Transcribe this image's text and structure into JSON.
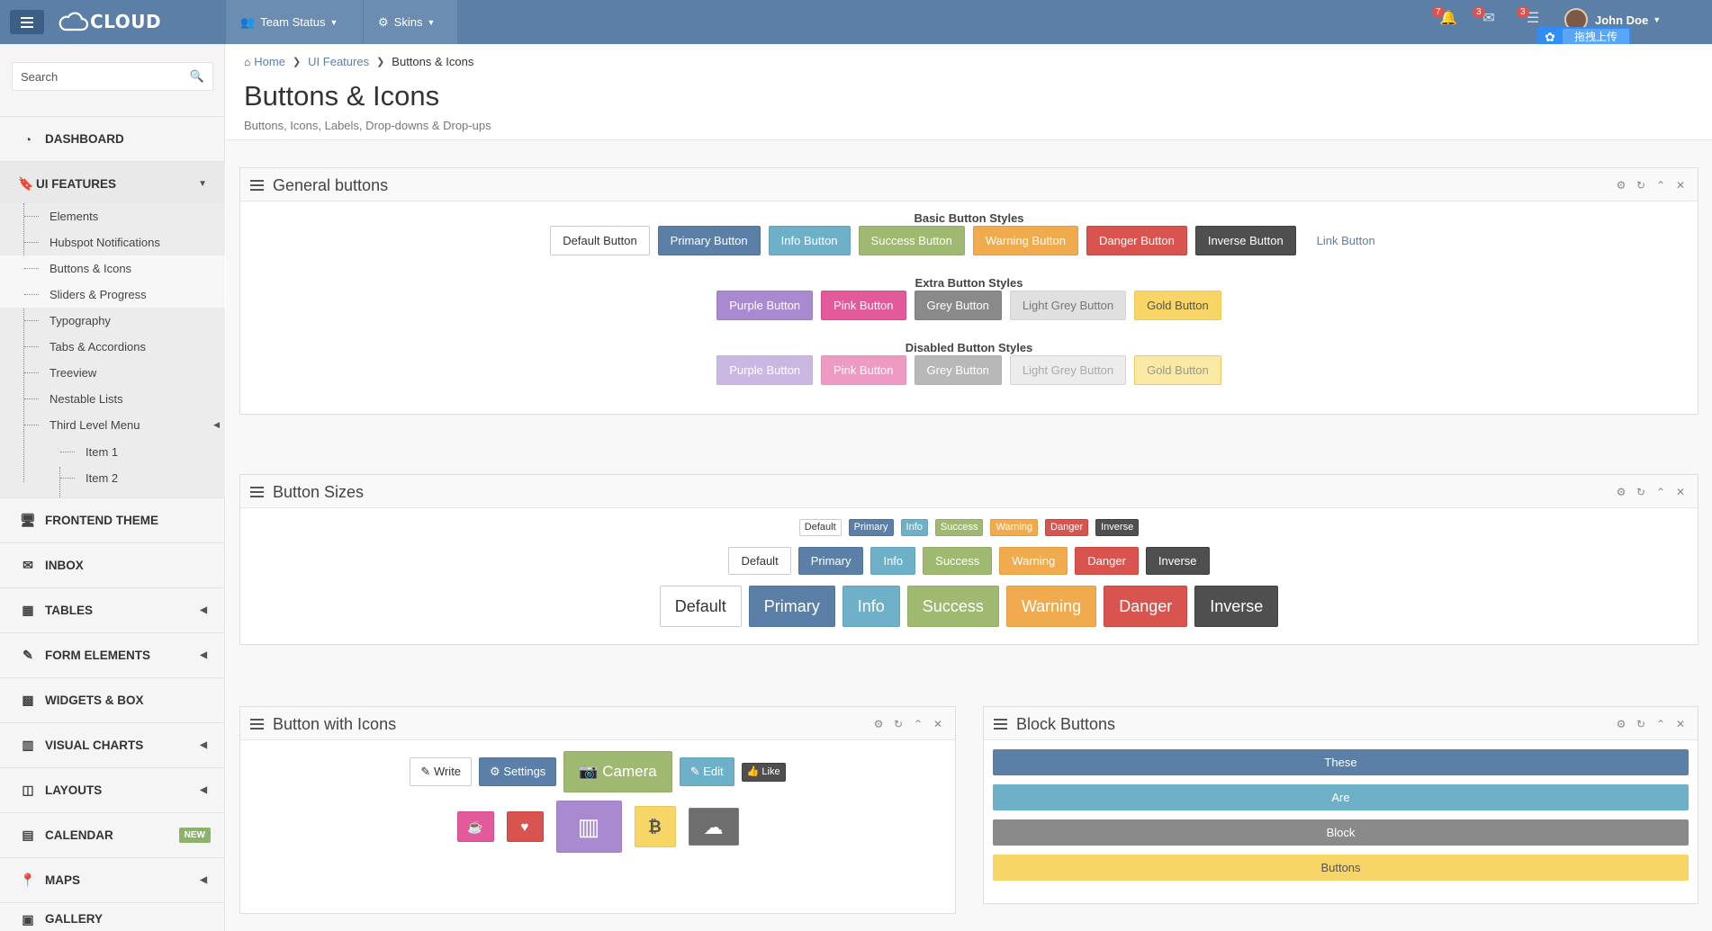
{
  "topbar": {
    "logo": "CLOUD",
    "nav": [
      {
        "label": "Team Status",
        "icon": "users-icon"
      },
      {
        "label": "Skins",
        "icon": "gear-icon"
      }
    ],
    "notifications": {
      "bell_count": "7",
      "mail_count": "3",
      "tasks_count": "3"
    },
    "user": {
      "name": "John Doe"
    },
    "upload_badge": "拖拽上传"
  },
  "sidebar": {
    "search": {
      "placeholder": "Search"
    },
    "items": [
      {
        "label": "DASHBOARD",
        "icon": "dashboard-icon"
      },
      {
        "label": "UI FEATURES",
        "icon": "bookmark-icon"
      },
      {
        "label": "FRONTEND THEME",
        "icon": "desktop-icon"
      },
      {
        "label": "INBOX",
        "icon": "envelope-icon"
      },
      {
        "label": "TABLES",
        "icon": "table-icon"
      },
      {
        "label": "FORM ELEMENTS",
        "icon": "edit-icon"
      },
      {
        "label": "WIDGETS & BOX",
        "icon": "th-large-icon"
      },
      {
        "label": "VISUAL CHARTS",
        "icon": "bar-chart-icon"
      },
      {
        "label": "LAYOUTS",
        "icon": "columns-icon"
      },
      {
        "label": "CALENDAR",
        "icon": "calendar-icon",
        "badge": "NEW"
      },
      {
        "label": "MAPS",
        "icon": "map-marker-icon"
      },
      {
        "label": "GALLERY",
        "icon": "picture-icon"
      }
    ],
    "submenu": [
      "Elements",
      "Hubspot Notifications",
      "Buttons & Icons",
      "Sliders & Progress",
      "Typography",
      "Tabs & Accordions",
      "Treeview",
      "Nestable Lists",
      "Third Level Menu"
    ],
    "third_level": [
      "Item 1",
      "Item 2"
    ]
  },
  "page": {
    "breadcrumb": [
      "Home",
      "UI Features",
      "Buttons & Icons"
    ],
    "title": "Buttons & Icons",
    "subtitle": "Buttons, Icons, Labels, Drop-downs & Drop-ups"
  },
  "general": {
    "title": "General buttons",
    "basic_label": "Basic Button Styles",
    "basic": [
      "Default Button",
      "Primary Button",
      "Info Button",
      "Success Button",
      "Warning Button",
      "Danger Button",
      "Inverse Button",
      "Link Button"
    ],
    "extra_label": "Extra Button Styles",
    "extra": [
      "Purple Button",
      "Pink Button",
      "Grey Button",
      "Light Grey Button",
      "Gold Button"
    ],
    "disabled_label": "Disabled Button Styles",
    "disabled": [
      "Purple Button",
      "Pink Button",
      "Grey Button",
      "Light Grey Button",
      "Gold Button"
    ]
  },
  "sizes": {
    "title": "Button Sizes",
    "labels": [
      "Default",
      "Primary",
      "Info",
      "Success",
      "Warning",
      "Danger",
      "Inverse"
    ]
  },
  "icons_panel": {
    "title": "Button with Icons",
    "write": "Write",
    "settings": "Settings",
    "camera": "Camera",
    "edit": "Edit",
    "like": "Like"
  },
  "block": {
    "title": "Block Buttons",
    "buttons": [
      "These",
      "Are",
      "Block",
      "Buttons"
    ]
  },
  "colors": {
    "primary": "#5b7fa6",
    "info": "#6fb0c9",
    "success": "#9fb971",
    "warning": "#f0ab4e",
    "danger": "#d9534f",
    "inverse": "#4f4f4f",
    "purple": "#a98ad0",
    "pink": "#e25a9a",
    "grey": "#8a8a8a",
    "gold": "#f7d566"
  }
}
